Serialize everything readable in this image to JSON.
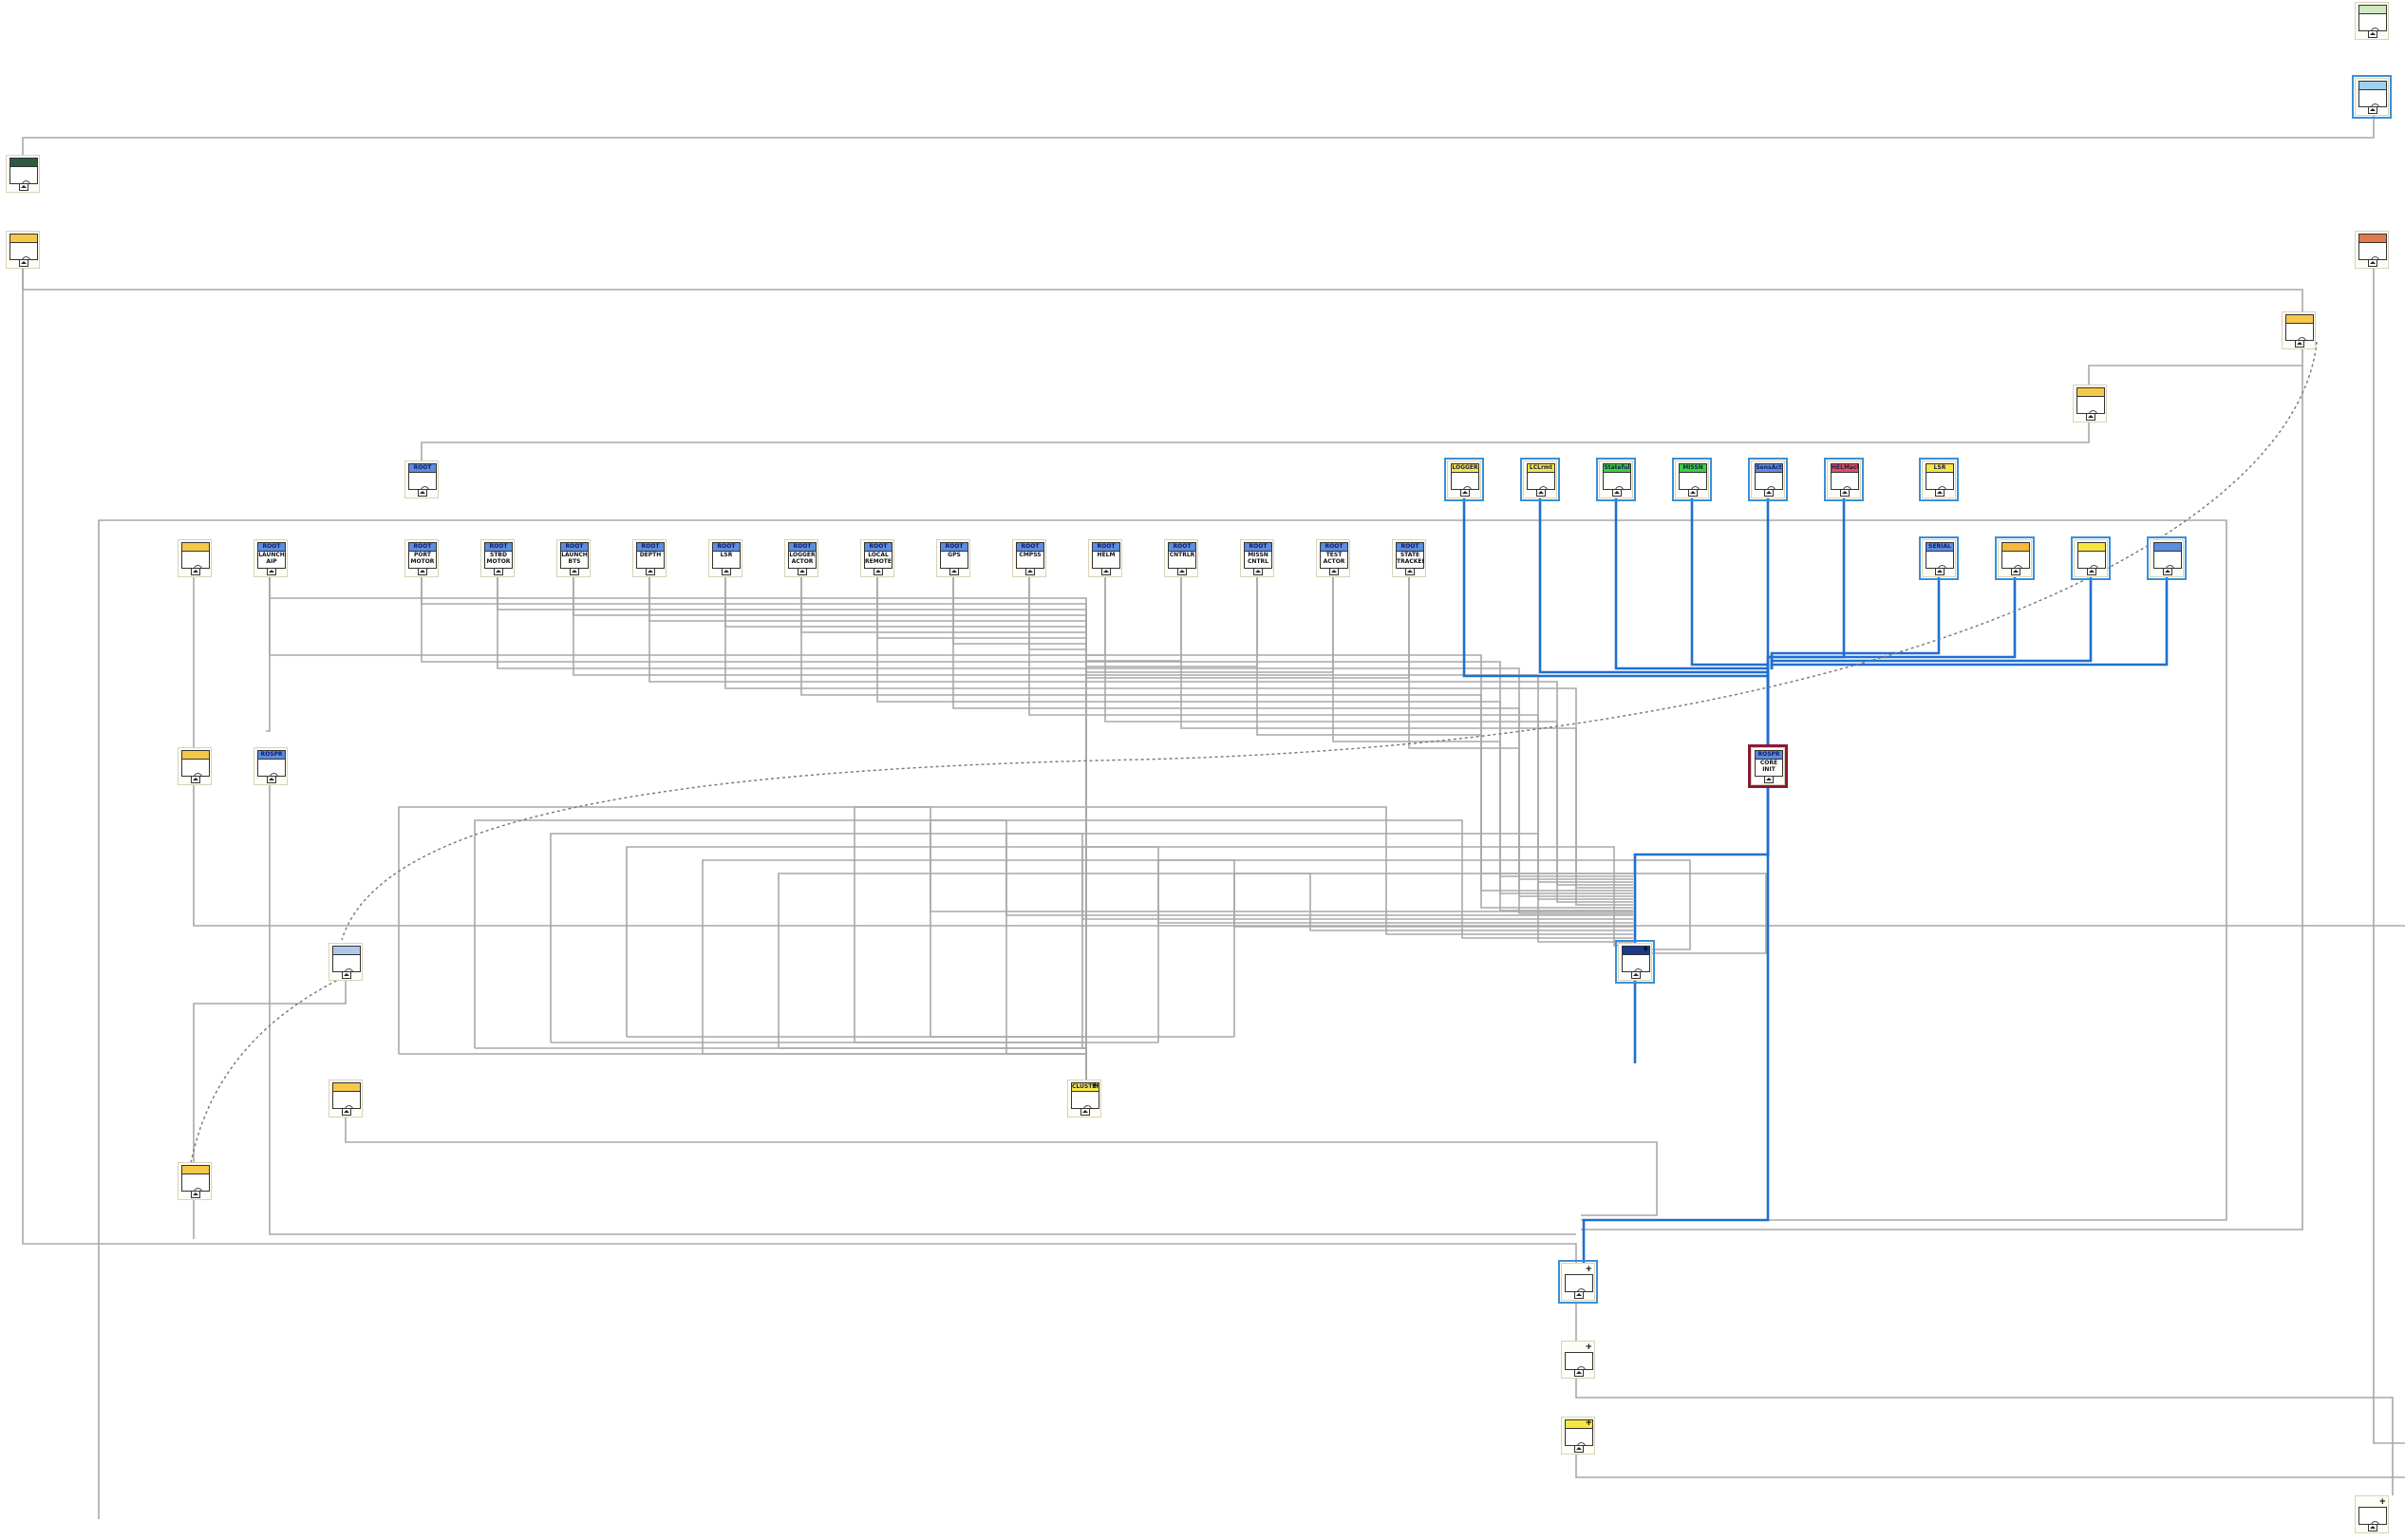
{
  "diagram": {
    "root_nodes": [
      {
        "id": "root-top",
        "header": "ROOT",
        "label": ""
      },
      {
        "id": "launch-aip",
        "header": "ROOT",
        "label": "LAUNCH AIP"
      },
      {
        "id": "port-motor",
        "header": "ROOT",
        "label": "PORT MOTOR"
      },
      {
        "id": "stbd-motor",
        "header": "ROOT",
        "label": "STBD MOTOR"
      },
      {
        "id": "launch-bts",
        "header": "ROOT",
        "label": "LAUNCH BTS"
      },
      {
        "id": "depth",
        "header": "ROOT",
        "label": "DEPTH"
      },
      {
        "id": "lsr",
        "header": "ROOT",
        "label": "LSR"
      },
      {
        "id": "logger-actor",
        "header": "ROOT",
        "label": "LOGGER ACTOR"
      },
      {
        "id": "local-remote",
        "header": "ROOT",
        "label": "LOCAL REMOTE"
      },
      {
        "id": "gps",
        "header": "ROOT",
        "label": "GPS"
      },
      {
        "id": "compass",
        "header": "ROOT",
        "label": "CMPSS"
      },
      {
        "id": "helm",
        "header": "ROOT",
        "label": "HELM"
      },
      {
        "id": "cntrlr",
        "header": "ROOT",
        "label": "CNTRLR"
      },
      {
        "id": "mission-cntrl",
        "header": "ROOT",
        "label": "MISSN CNTRL"
      },
      {
        "id": "test-actor",
        "header": "ROOT",
        "label": "TEST ACTOR"
      },
      {
        "id": "state-tracker",
        "header": "ROOT",
        "label": "STATE TRACKER"
      }
    ],
    "top_right_nodes": [
      {
        "id": "logger",
        "header": "LOGGER",
        "color": "#f5e642"
      },
      {
        "id": "lclrmt",
        "header": "LCLrmt",
        "color": "#f5e642"
      },
      {
        "id": "stateful",
        "header": "Stateful",
        "color": "#3cd13c"
      },
      {
        "id": "missn",
        "header": "MISSN",
        "color": "#3cd13c"
      },
      {
        "id": "sensor",
        "header": "SensAct",
        "color": "#5b8de0"
      },
      {
        "id": "helmact",
        "header": "HELMact",
        "color": "#e0505a"
      },
      {
        "id": "lsr-top",
        "header": "LSR",
        "color": "#f5e642"
      }
    ],
    "right_row_nodes": [
      {
        "id": "serial",
        "header": "SERIAL",
        "color": "#5b8de0"
      },
      {
        "id": "orange",
        "header": "",
        "color": "#f5b83c"
      },
      {
        "id": "yellow",
        "header": "",
        "color": "#f5e642"
      },
      {
        "id": "blue",
        "header": "",
        "color": "#5b8de0"
      }
    ],
    "misc_labels": {
      "rospr_left": "ROSPR",
      "core_header": "ROSPR",
      "core_label": "CORE INIT",
      "cluster": "CLUSTER"
    },
    "colors": {
      "wire_gray": "#a8a8a8",
      "wire_blue": "#1f6fd0",
      "node_blue": "#5b8de0",
      "node_yellow": "#f5c84a",
      "maroon": "#8a1a3a"
    }
  }
}
